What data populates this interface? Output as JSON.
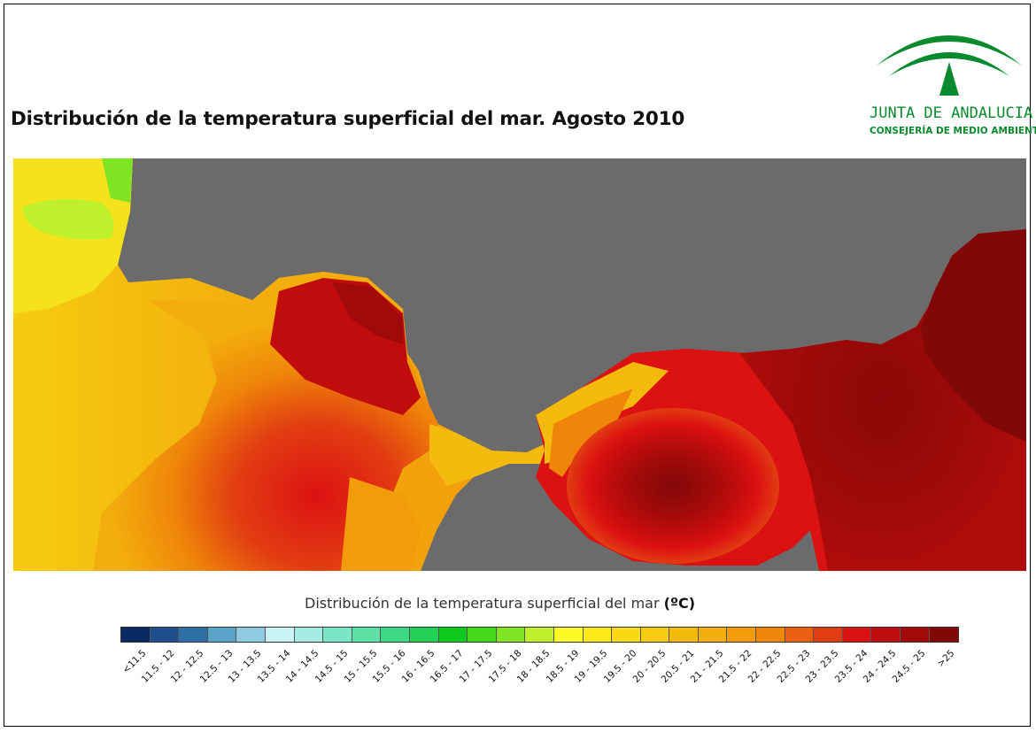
{
  "title": "Distribución de la temperatura superficial del mar. Agosto 2010",
  "logo": {
    "name": "JUNTA DE ANDALUCIA",
    "subtitle": "CONSEJERÍA DE MEDIO AMBIENTE",
    "color": "#0a8a2e"
  },
  "map": {
    "land_color": "#6b6b6b",
    "region": "Gulf of Cadiz, Strait of Gibraltar and Alboran Sea"
  },
  "legend": {
    "title": "Distribución de la temperatura superficial del mar",
    "unit": "(ºC)",
    "classes": [
      {
        "label": "<11.5",
        "color": "#0b2a63"
      },
      {
        "label": "11.5 - 12",
        "color": "#1c4f8c"
      },
      {
        "label": "12 - 12.5",
        "color": "#2e6fa3"
      },
      {
        "label": "12.5 - 13",
        "color": "#5aa2c7"
      },
      {
        "label": "13 - 13.5",
        "color": "#8fcbe0"
      },
      {
        "label": "13.5 - 14",
        "color": "#c9f3f7"
      },
      {
        "label": "14 - 14.5",
        "color": "#a5ede3"
      },
      {
        "label": "14.5 - 15",
        "color": "#79e6c5"
      },
      {
        "label": "15 - 15.5",
        "color": "#5ce0a4"
      },
      {
        "label": "15.5 - 16",
        "color": "#3dd982"
      },
      {
        "label": "16 - 16.5",
        "color": "#22d056"
      },
      {
        "label": "16.5 - 17",
        "color": "#0ec81e"
      },
      {
        "label": "17 - 17.5",
        "color": "#44d81a"
      },
      {
        "label": "17.5 - 18",
        "color": "#7fe424"
      },
      {
        "label": "18 - 18.5",
        "color": "#bff02c"
      },
      {
        "label": "18.5 - 19",
        "color": "#fbfa24"
      },
      {
        "label": "19 - 19.5",
        "color": "#f9ea18"
      },
      {
        "label": "19.5 - 20",
        "color": "#f7da12"
      },
      {
        "label": "20 - 20.5",
        "color": "#f6cb10"
      },
      {
        "label": "20.5 - 21",
        "color": "#f4bb0e"
      },
      {
        "label": "21 - 21.5",
        "color": "#f3ad0d"
      },
      {
        "label": "21.5 - 22",
        "color": "#f29c0b"
      },
      {
        "label": "22 - 22.5",
        "color": "#ef8509"
      },
      {
        "label": "22.5 - 23",
        "color": "#e86010"
      },
      {
        "label": "23 - 23.5",
        "color": "#e23d12"
      },
      {
        "label": "23.5 - 24",
        "color": "#dc1111"
      },
      {
        "label": "24 - 24.5",
        "color": "#c00c0c"
      },
      {
        "label": "24.5 - 25",
        "color": "#a10a0a"
      },
      {
        "label": ">25",
        "color": "#820707"
      }
    ]
  }
}
